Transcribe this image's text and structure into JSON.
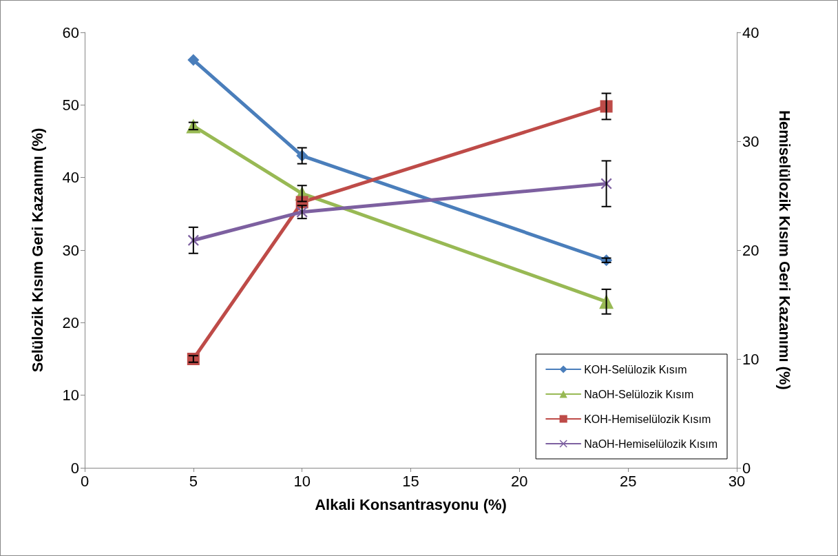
{
  "chart_data": {
    "type": "line",
    "xlabel": "Alkali Konsantrasyonu (%)",
    "ylabel": "Selülozik Kısım Geri Kazanımı (%)",
    "y2label": "Hemiselülozik Kısım Geri Kazanımı (%)",
    "x": [
      5,
      10,
      24
    ],
    "series": [
      {
        "name": "KOH-Selülozik Kısım",
        "color": "#4a7ebb",
        "marker": "diamond",
        "values": [
          56.2,
          43.0,
          28.6
        ],
        "errors": [
          null,
          1.1,
          0.3
        ]
      },
      {
        "name": "NaOH-Selülozik Kısım",
        "color": "#98b954",
        "marker": "triangle",
        "values": [
          47.1,
          37.8,
          22.9
        ],
        "errors": [
          0.5,
          1.1,
          1.7
        ]
      },
      {
        "name": "KOH-Hemiselülozik Kısım",
        "color": "#be4b48",
        "marker": "square",
        "axis": "y2",
        "values": [
          10.0,
          24.4,
          33.2
        ],
        "errors": [
          0.3,
          null,
          1.2
        ]
      },
      {
        "name": "NaOH-Hemiselülozik Kısım",
        "color": "#7d60a0",
        "marker": "cross",
        "axis": "y2",
        "values": [
          20.9,
          23.5,
          26.1
        ],
        "errors": [
          1.2,
          0.6,
          2.1
        ]
      }
    ],
    "xlim": [
      0,
      30
    ],
    "xticks": [
      0,
      5,
      10,
      15,
      20,
      25,
      30
    ],
    "ylim": [
      0,
      60
    ],
    "yticks": [
      0,
      10,
      20,
      30,
      40,
      50,
      60
    ],
    "y2lim": [
      0,
      40
    ],
    "y2ticks": [
      0,
      10,
      20,
      30,
      40
    ],
    "grid": false,
    "legend": "bottom right",
    "line_style": "solid"
  }
}
